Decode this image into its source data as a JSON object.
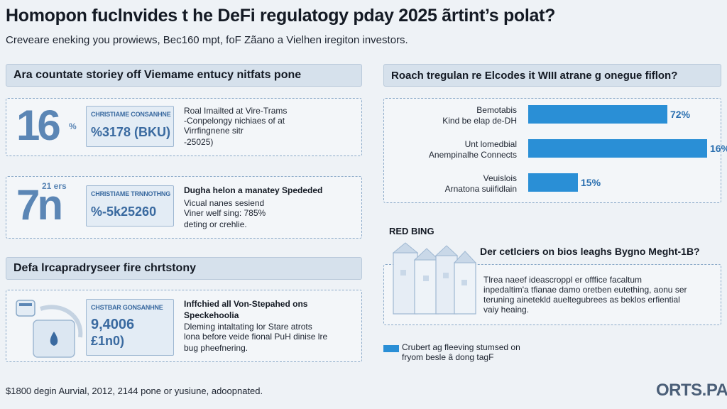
{
  "header": {
    "title": "Homopon fuclnvides t he DeFi regulatogy pday 2025 ãrtint’s polat?",
    "subtitle": "Crevеare enekіng you prowiews, Bec160 mpt, foF Zãano a Vielhen iregiton investors."
  },
  "left": {
    "section1_title": "Ara countate storiey off Viemame entucy nitfats pone",
    "card1": {
      "big": "16",
      "sup": "%",
      "box_label": "CHRISTIAME CONSANHNE",
      "box_value": "%3178 (BKU)",
      "lines": [
        "Roal Imailted at Vire-Trams",
        "-Conpelongy nichiaes of at",
        "Virrfingnene sitr",
        "-25025)"
      ]
    },
    "card2": {
      "big": "7n",
      "sup": "21 ers",
      "box_label": "CHRISTIAME TRNNOTHNG",
      "box_value": "%-5k25260",
      "heading": "Dugha helon a manatey Spededed",
      "lines": [
        "Vicual nanes sesiend",
        "Viner welf sing: 785%",
        "deting or crehlie."
      ]
    },
    "section2_title": "Defa lrcapradryseer fire chrtstony",
    "card3": {
      "box_label": "CHSTBAR GONSANHNE",
      "box_value": "9,4006",
      "box_value2": "£1n0)",
      "heading": "Inffchied all Von-Stepahed ons",
      "heading2": "Speckehoolia",
      "lines": [
        "Dleming intaltating lor Stare atrots",
        "lona before veide fional PuH dinise lre",
        "bug pheefnering."
      ]
    }
  },
  "right": {
    "section_title": "Roach tregulan re Elcodes it WIII atrane g onegue fiflon?",
    "chart_data": {
      "type": "bar",
      "categories": [
        "Bemotabis Kind be elap de-DH",
        "Unt lomedbial Anempinalhe Connects",
        "Veuislois Arnatona suiifidlain"
      ],
      "values": [
        72,
        16,
        15
      ],
      "value_labels": [
        "72%",
        "16%",
        "15%"
      ],
      "color": "#2a8fd6"
    },
    "red_label": "RED BING",
    "question": "Der cetlciers on bios leaghs Bygno Meght-1B?",
    "para": [
      "Tlrea naeef ideascroppl er offfice facaltum",
      "inpedaltim'a tfianae damo oretben eutething, aonu ser",
      "teruning ainetekld aueltegubrees as beklos erfiential",
      "vaiy heaing."
    ],
    "legend": [
      "Crubert ag fleeving stumsed on",
      "fryom besle â dong tagF"
    ]
  },
  "footer": {
    "text": "$1800 degin Aurvial, 2012, 2144 pone or yusiune, adoopnated.",
    "brand": "ORTS.PA"
  }
}
